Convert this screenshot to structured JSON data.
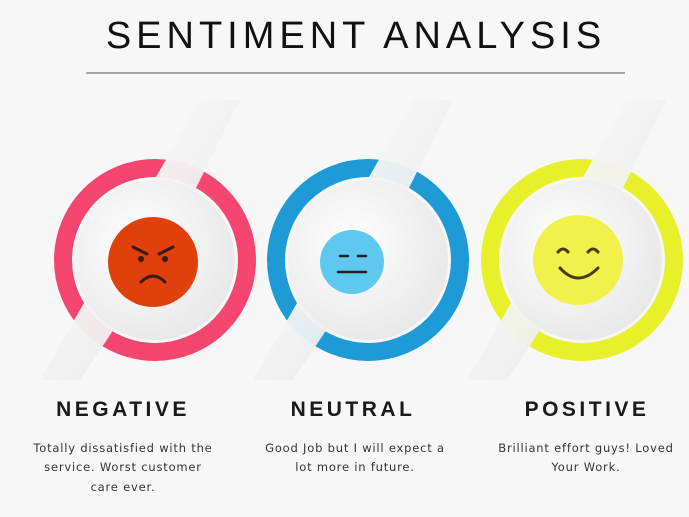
{
  "header": {
    "title": "SENTIMENT ANALYSIS"
  },
  "cards": [
    {
      "label": "NEGATIVE",
      "description": [
        "Totally dissatisfied with the",
        "service. Worst customer",
        "care ever."
      ]
    },
    {
      "label": "NEUTRAL",
      "description": [
        "Good Job but I will expect a",
        "lot more in future."
      ]
    },
    {
      "label": "POSITIVE",
      "description": [
        "Brilliant effort guys! Loved",
        "Your Work."
      ]
    }
  ]
}
